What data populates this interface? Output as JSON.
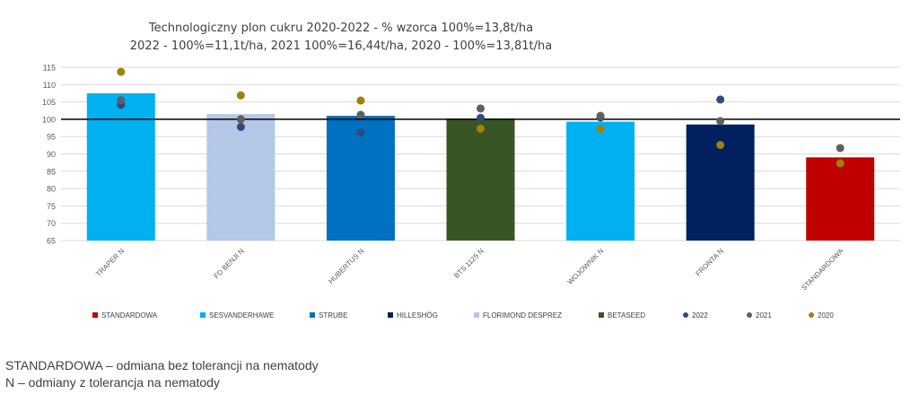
{
  "chart_data": {
    "type": "bar",
    "title": "Technologiczny plon cukru 2020-2022 - % wzorca 100%=13,8t/ha",
    "subtitle": "2022 - 100%=11,1t/ha, 2021 100%=16,44t/ha, 2020 - 100%=13,81t/ha",
    "categories": [
      "TRAPER N",
      "FD BENJI N",
      "HUBERTUS N",
      "BTS 1125 N",
      "WOJOWNIK N",
      "FRONTA N",
      "STANDARDOWA"
    ],
    "bar_values": [
      107.5,
      101.5,
      101,
      100.2,
      99.3,
      98.5,
      89
    ],
    "bar_colors": [
      "#00b0f0",
      "#b4c7e7",
      "#0070c0",
      "#375623",
      "#00b0f0",
      "#002060",
      "#c00000"
    ],
    "ylim": [
      65,
      115
    ],
    "yticks": [
      65,
      70,
      75,
      80,
      85,
      90,
      95,
      100,
      105,
      110,
      115
    ],
    "reference_line": 100,
    "grid": true,
    "series": [
      {
        "name": "2022",
        "color": "#2f4a7f",
        "values": [
          104.2,
          97.8,
          96.2,
          100.4,
          100.5,
          105.7,
          null
        ]
      },
      {
        "name": "2021",
        "color": "#5f5f5f",
        "values": [
          105.5,
          100,
          101.3,
          103.1,
          101,
          99.5,
          91.7
        ]
      },
      {
        "name": "2020",
        "color": "#a37f0c",
        "values": [
          113.7,
          106.9,
          105.4,
          97.3,
          97.2,
          92.6,
          87.3
        ]
      }
    ],
    "legend": [
      {
        "label": "STANDARDOWA",
        "color": "#c00000",
        "shape": "square"
      },
      {
        "label": "SESVANDERHAWE",
        "color": "#00b0f0",
        "shape": "square"
      },
      {
        "label": "STRUBE",
        "color": "#0070c0",
        "shape": "square"
      },
      {
        "label": "HILLESHÖG",
        "color": "#002060",
        "shape": "square"
      },
      {
        "label": "FLORIMOND DESPREZ",
        "color": "#b4c7e7",
        "shape": "square"
      },
      {
        "label": "BETASEED",
        "color": "#375623",
        "shape": "square"
      },
      {
        "label": "2022",
        "color": "#2f4a7f",
        "shape": "circle"
      },
      {
        "label": "2021",
        "color": "#5f5f5f",
        "shape": "circle"
      },
      {
        "label": "2020",
        "color": "#a37f0c",
        "shape": "circle"
      }
    ],
    "legend_position": "bottom"
  },
  "notes": {
    "line1": "STANDARDOWA – odmiana bez tolerancji na nematody",
    "line2": "N – odmiany z tolerancja na nematody"
  }
}
